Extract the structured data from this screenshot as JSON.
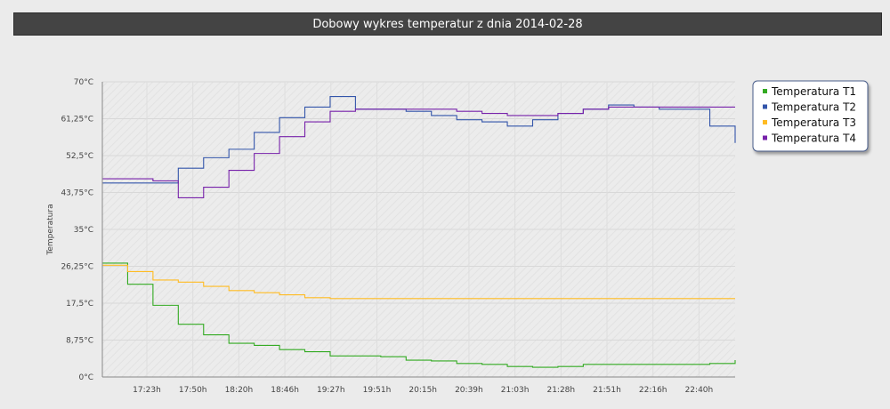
{
  "page": {
    "title": "Dobowy wykres temperatur  z dnia 2014-02-28"
  },
  "chart_data": {
    "type": "line",
    "title": "Dobowy wykres temperatur  z dnia 2014-02-28",
    "xlabel": "",
    "ylabel": "Temperatura",
    "ylim": [
      0,
      70
    ],
    "yticks": [
      "0°C",
      "8,75°C",
      "17,5°C",
      "26,25°C",
      "35°C",
      "43,75°C",
      "52,5°C",
      "61,25°C",
      "70°C"
    ],
    "xticks": [
      "17:23h",
      "17:50h",
      "18:20h",
      "18:46h",
      "19:27h",
      "19:51h",
      "20:15h",
      "20:39h",
      "21:03h",
      "21:28h",
      "21:51h",
      "22:16h",
      "22:40h"
    ],
    "x": [
      0,
      4,
      8,
      12,
      16,
      20,
      24,
      28,
      32,
      36,
      40,
      44,
      48,
      52,
      56,
      60,
      64,
      68,
      72,
      76,
      80,
      84,
      88,
      92,
      96,
      100
    ],
    "x_unit": "percent of time span",
    "grid": true,
    "legend_position": "right",
    "series": [
      {
        "name": "Temperatura T1",
        "color": "#33aa22",
        "values": [
          27.0,
          22.0,
          17.0,
          12.5,
          10.0,
          8.0,
          7.5,
          6.5,
          6.0,
          5.0,
          5.0,
          4.8,
          4.0,
          3.8,
          3.2,
          3.0,
          2.5,
          2.3,
          2.5,
          3.0,
          3.0,
          3.0,
          3.0,
          3.0,
          3.2,
          4.0
        ]
      },
      {
        "name": "Temperatura T2",
        "color": "#3355aa",
        "values": [
          46.0,
          46.0,
          46.0,
          49.5,
          52.0,
          54.0,
          58.0,
          61.5,
          64.0,
          66.5,
          63.5,
          63.5,
          63.0,
          62.0,
          61.0,
          60.5,
          59.5,
          61.0,
          62.5,
          63.5,
          64.5,
          64.0,
          63.5,
          63.5,
          59.5,
          55.5
        ]
      },
      {
        "name": "Temperatura T3",
        "color": "#ffbb22",
        "values": [
          26.5,
          25.0,
          23.0,
          22.5,
          21.5,
          20.5,
          20.0,
          19.5,
          18.8,
          18.6,
          18.6,
          18.6,
          18.6,
          18.6,
          18.6,
          18.6,
          18.6,
          18.6,
          18.6,
          18.6,
          18.6,
          18.6,
          18.6,
          18.6,
          18.6,
          18.6
        ]
      },
      {
        "name": "Temperatura T4",
        "color": "#7722aa",
        "values": [
          47.0,
          47.0,
          46.5,
          42.5,
          45.0,
          49.0,
          53.0,
          57.0,
          60.5,
          63.0,
          63.5,
          63.5,
          63.5,
          63.5,
          63.0,
          62.5,
          62.0,
          62.0,
          62.5,
          63.5,
          64.0,
          64.0,
          64.0,
          64.0,
          64.0,
          64.0
        ]
      }
    ]
  }
}
